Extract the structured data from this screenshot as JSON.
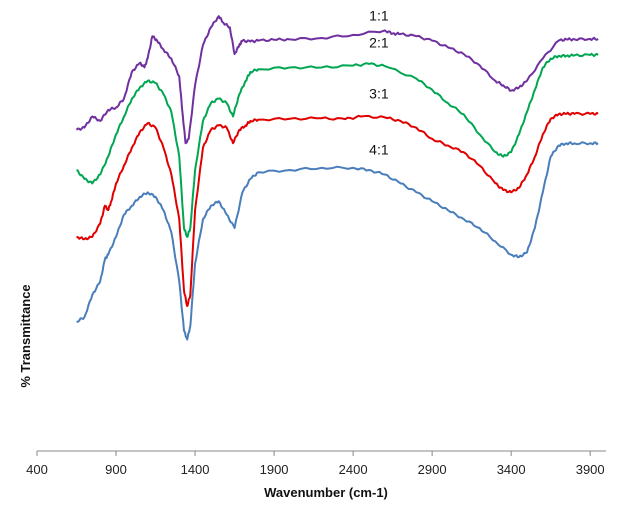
{
  "chart_data": {
    "type": "line",
    "title": "",
    "xlabel": "Wavenumber (cm-1)",
    "ylabel": "% Transmittance",
    "xlim": [
      400,
      4000
    ],
    "ylim": [
      0,
      100
    ],
    "xticks": [
      400,
      900,
      1400,
      1900,
      2400,
      2900,
      3400,
      3900
    ],
    "grid": false,
    "legend": "labels above curves",
    "series": [
      {
        "name": "1:1",
        "color": "#7030a0",
        "x": [
          650,
          700,
          750,
          800,
          850,
          900,
          950,
          1000,
          1050,
          1080,
          1100,
          1130,
          1160,
          1200,
          1250,
          1300,
          1320,
          1340,
          1360,
          1400,
          1450,
          1500,
          1550,
          1580,
          1620,
          1650,
          1680,
          1700,
          1750,
          1800,
          1900,
          2000,
          2200,
          2400,
          2600,
          2650,
          2700,
          2800,
          2900,
          3000,
          3100,
          3200,
          3300,
          3350,
          3400,
          3450,
          3500,
          3600,
          3700,
          3750,
          3800,
          3900,
          3950
        ],
        "y": [
          72,
          72.5,
          75,
          74,
          76.5,
          77,
          79,
          85,
          87,
          86,
          88,
          93,
          92,
          90,
          88,
          84,
          76,
          69,
          70,
          82,
          91,
          95,
          97.5,
          96,
          95,
          89,
          91,
          92,
          91.8,
          92,
          92.2,
          92.3,
          92.6,
          93.3,
          94.3,
          93.6,
          93.5,
          93,
          92,
          90.5,
          89,
          86.5,
          83,
          82,
          80.8,
          81.5,
          83,
          88,
          92,
          92.3,
          92.3,
          92.4,
          92.4
        ]
      },
      {
        "name": "2:1",
        "color": "#00a651",
        "x": [
          650,
          700,
          750,
          800,
          850,
          900,
          950,
          1000,
          1050,
          1100,
          1150,
          1200,
          1250,
          1300,
          1330,
          1350,
          1370,
          1400,
          1450,
          1500,
          1550,
          1600,
          1640,
          1680,
          1720,
          1750,
          1800,
          2000,
          2200,
          2400,
          2500,
          2600,
          2800,
          2900,
          3000,
          3100,
          3200,
          3300,
          3350,
          3400,
          3450,
          3500,
          3550,
          3600,
          3650,
          3700,
          3750,
          3800,
          3900,
          3950
        ],
        "y": [
          63,
          61,
          60,
          62,
          66,
          71,
          75,
          79,
          81.5,
          83,
          82.5,
          80,
          76,
          66,
          50,
          48,
          50,
          63,
          74,
          78,
          79,
          78,
          75,
          80,
          83,
          85,
          85.6,
          86,
          86,
          86.4,
          86.8,
          86.3,
          83.5,
          81,
          78,
          75.5,
          71,
          67,
          66,
          67,
          71,
          76,
          81,
          86,
          88,
          88.6,
          88.6,
          88.7,
          88.8,
          88.8
        ]
      },
      {
        "name": "3:1",
        "color": "#e00000",
        "x": [
          650,
          700,
          750,
          800,
          830,
          850,
          870,
          900,
          950,
          1000,
          1050,
          1100,
          1150,
          1200,
          1250,
          1300,
          1330,
          1350,
          1370,
          1400,
          1450,
          1500,
          1550,
          1600,
          1640,
          1680,
          1720,
          1750,
          1800,
          2000,
          2200,
          2350,
          2450,
          2600,
          2700,
          2800,
          2900,
          3000,
          3100,
          3200,
          3300,
          3350,
          3400,
          3450,
          3500,
          3550,
          3600,
          3650,
          3700,
          3750,
          3800,
          3900,
          3950
        ],
        "y": [
          48,
          47.5,
          48,
          51,
          55,
          54,
          56,
          60,
          64,
          68,
          71.5,
          73.5,
          72.5,
          68,
          62,
          52,
          36,
          32.5,
          35,
          54,
          68,
          72,
          73,
          72.5,
          69,
          72,
          73,
          74,
          74.3,
          74.5,
          74.6,
          74.4,
          75,
          74.8,
          74,
          72.5,
          70,
          68.5,
          67,
          64,
          60,
          58.5,
          58,
          59,
          62,
          66,
          71,
          74.5,
          75.5,
          75.6,
          75.6,
          75.6,
          75.6
        ]
      },
      {
        "name": "4:1",
        "color": "#4a7ebb",
        "x": [
          650,
          700,
          750,
          800,
          830,
          850,
          900,
          950,
          1000,
          1050,
          1100,
          1150,
          1200,
          1250,
          1300,
          1330,
          1350,
          1370,
          1400,
          1450,
          1500,
          1550,
          1600,
          1650,
          1700,
          1750,
          1800,
          2000,
          2200,
          2400,
          2500,
          2600,
          2700,
          2800,
          2900,
          3000,
          3100,
          3200,
          3300,
          3400,
          3450,
          3500,
          3550,
          3600,
          3650,
          3700,
          3750,
          3800,
          3900,
          3950
        ],
        "y": [
          29,
          30,
          35,
          38,
          43,
          44,
          48,
          53,
          55,
          57,
          58,
          57,
          54,
          49,
          38,
          27,
          25,
          28,
          42,
          52,
          55,
          56,
          53,
          50,
          58,
          61,
          62.5,
          63,
          63.5,
          63.5,
          63,
          62,
          60,
          58,
          56,
          54,
          52,
          50,
          47,
          44,
          43.5,
          44.5,
          50,
          58,
          66,
          68.5,
          69,
          69,
          69,
          69
        ]
      }
    ]
  }
}
